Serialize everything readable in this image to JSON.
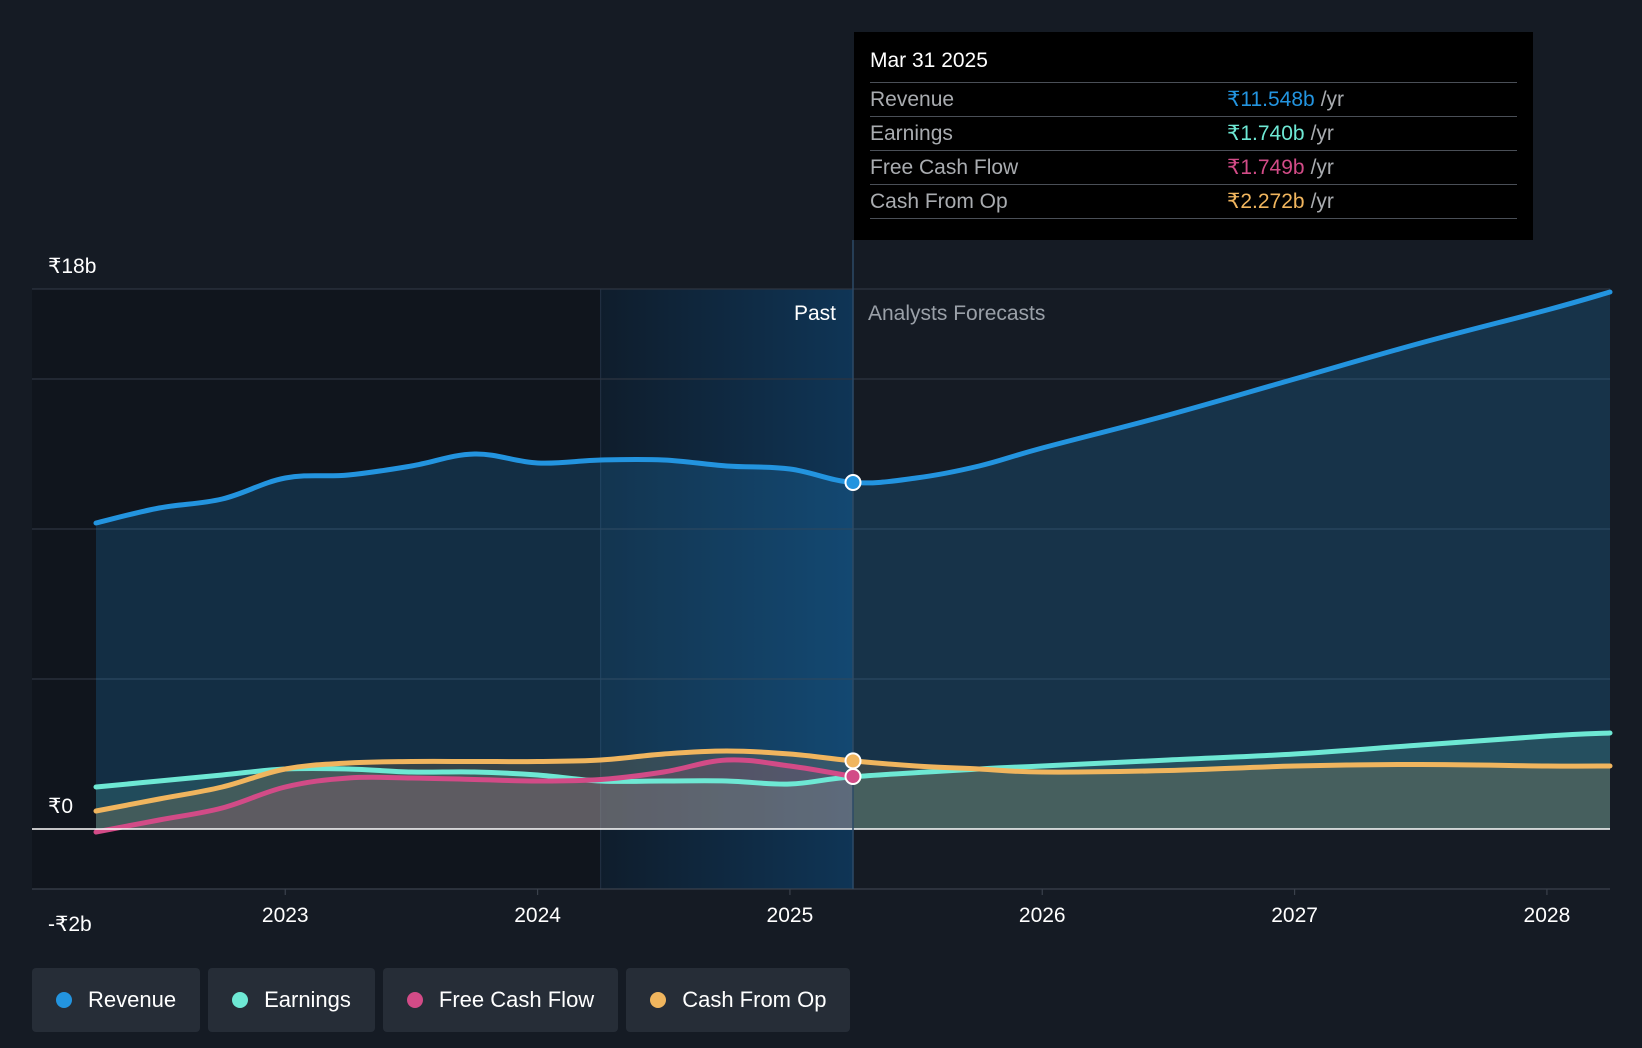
{
  "colors": {
    "revenue": "#2394df",
    "earnings": "#6ee8d4",
    "fcf": "#d24b87",
    "cfo": "#f0b55e"
  },
  "tooltip": {
    "date": "Mar 31 2025",
    "rows": [
      {
        "label": "Revenue",
        "value": "₹11.548b",
        "unit": "/yr"
      },
      {
        "label": "Earnings",
        "value": "₹1.740b",
        "unit": "/yr"
      },
      {
        "label": "Free Cash Flow",
        "value": "₹1.749b",
        "unit": "/yr"
      },
      {
        "label": "Cash From Op",
        "value": "₹2.272b",
        "unit": "/yr"
      }
    ]
  },
  "legend": [
    "Revenue",
    "Earnings",
    "Free Cash Flow",
    "Cash From Op"
  ],
  "chart_data": {
    "type": "area",
    "y_tick_labels": [
      "₹18b",
      "₹0",
      "-₹2b"
    ],
    "ylim": [
      -2,
      18
    ],
    "xlim": [
      2022.25,
      2028.25
    ],
    "x_tick_labels": [
      "2023",
      "2024",
      "2025",
      "2026",
      "2027",
      "2028"
    ],
    "x_ticks": [
      2023,
      2024,
      2025,
      2026,
      2027,
      2028
    ],
    "gridlines_y": [
      0,
      5,
      10,
      15,
      18
    ],
    "past_label": "Past",
    "forecast_label": "Analysts Forecasts",
    "divider_x": 2025.25,
    "highlight_start_x": 2024.25,
    "series": [
      {
        "name": "Revenue",
        "key": "revenue",
        "points": [
          [
            2022.25,
            10.2
          ],
          [
            2022.5,
            10.7
          ],
          [
            2022.75,
            11.0
          ],
          [
            2023.0,
            11.7
          ],
          [
            2023.25,
            11.8
          ],
          [
            2023.5,
            12.1
          ],
          [
            2023.75,
            12.5
          ],
          [
            2024.0,
            12.2
          ],
          [
            2024.25,
            12.3
          ],
          [
            2024.5,
            12.3
          ],
          [
            2024.75,
            12.1
          ],
          [
            2025.0,
            12.0
          ],
          [
            2025.25,
            11.55
          ],
          [
            2025.5,
            11.7
          ],
          [
            2025.75,
            12.1
          ],
          [
            2026.0,
            12.7
          ],
          [
            2026.5,
            13.8
          ],
          [
            2027.0,
            15.0
          ],
          [
            2027.5,
            16.2
          ],
          [
            2028.0,
            17.3
          ],
          [
            2028.25,
            17.9
          ]
        ]
      },
      {
        "name": "Earnings",
        "key": "earnings",
        "points": [
          [
            2022.25,
            1.4
          ],
          [
            2022.5,
            1.6
          ],
          [
            2022.75,
            1.8
          ],
          [
            2023.0,
            2.0
          ],
          [
            2023.25,
            2.0
          ],
          [
            2023.5,
            1.9
          ],
          [
            2023.75,
            1.9
          ],
          [
            2024.0,
            1.8
          ],
          [
            2024.25,
            1.6
          ],
          [
            2024.5,
            1.6
          ],
          [
            2024.75,
            1.6
          ],
          [
            2025.0,
            1.5
          ],
          [
            2025.25,
            1.74
          ],
          [
            2025.75,
            2.0
          ],
          [
            2026.0,
            2.1
          ],
          [
            2026.5,
            2.3
          ],
          [
            2027.0,
            2.5
          ],
          [
            2027.5,
            2.8
          ],
          [
            2028.0,
            3.1
          ],
          [
            2028.25,
            3.2
          ]
        ]
      },
      {
        "name": "Free Cash Flow",
        "key": "fcf",
        "points": [
          [
            2022.25,
            -0.1
          ],
          [
            2022.5,
            0.3
          ],
          [
            2022.75,
            0.7
          ],
          [
            2023.0,
            1.4
          ],
          [
            2023.25,
            1.7
          ],
          [
            2023.5,
            1.7
          ],
          [
            2023.75,
            1.65
          ],
          [
            2024.0,
            1.6
          ],
          [
            2024.25,
            1.65
          ],
          [
            2024.5,
            1.9
          ],
          [
            2024.75,
            2.3
          ],
          [
            2025.0,
            2.1
          ],
          [
            2025.25,
            1.75
          ]
        ]
      },
      {
        "name": "Cash From Op",
        "key": "cfo",
        "points": [
          [
            2022.25,
            0.6
          ],
          [
            2022.5,
            1.0
          ],
          [
            2022.75,
            1.4
          ],
          [
            2023.0,
            2.0
          ],
          [
            2023.25,
            2.2
          ],
          [
            2023.5,
            2.25
          ],
          [
            2023.75,
            2.25
          ],
          [
            2024.0,
            2.25
          ],
          [
            2024.25,
            2.3
          ],
          [
            2024.5,
            2.5
          ],
          [
            2024.75,
            2.6
          ],
          [
            2025.0,
            2.5
          ],
          [
            2025.25,
            2.27
          ],
          [
            2025.5,
            2.1
          ],
          [
            2025.75,
            2.0
          ],
          [
            2026.0,
            1.9
          ],
          [
            2026.5,
            1.95
          ],
          [
            2027.0,
            2.1
          ],
          [
            2027.5,
            2.15
          ],
          [
            2028.0,
            2.1
          ],
          [
            2028.25,
            2.1
          ]
        ]
      }
    ]
  }
}
